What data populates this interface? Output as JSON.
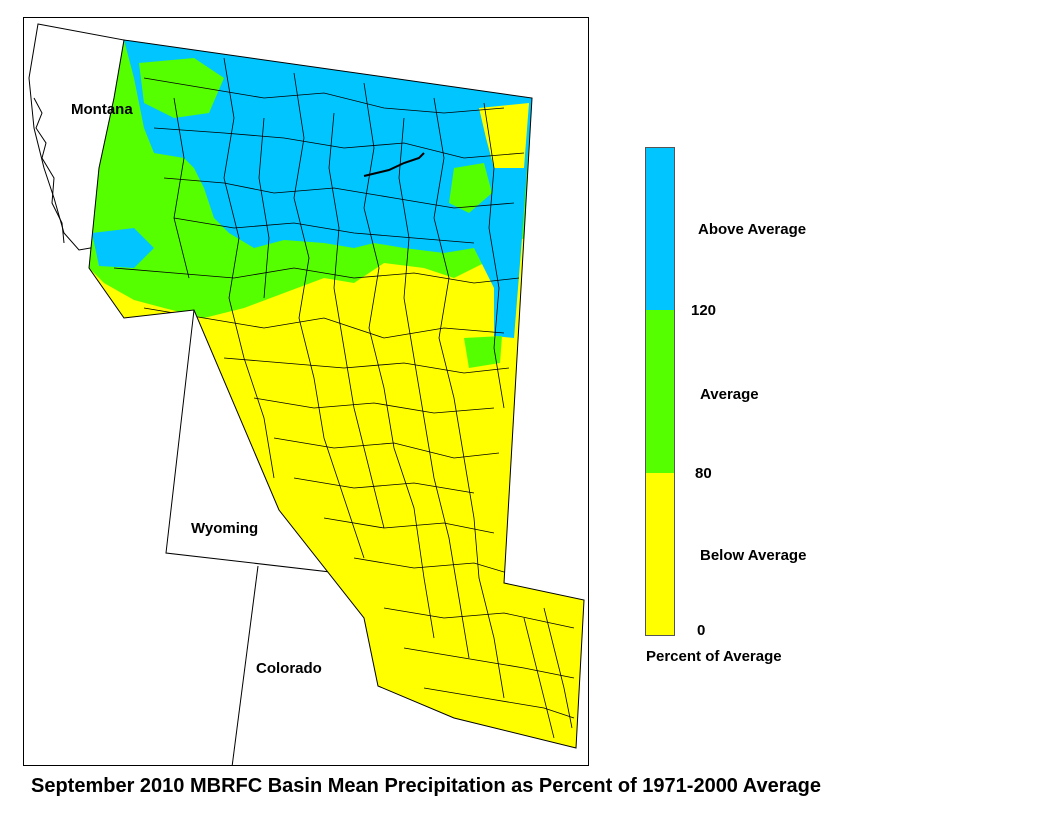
{
  "title": "September 2010 MBRFC Basin Mean Precipitation as Percent of 1971-2000 Average",
  "states": {
    "montana": "Montana",
    "wyoming": "Wyoming",
    "colorado": "Colorado"
  },
  "legend": {
    "caption": "Percent of Average",
    "categories": [
      {
        "label": "Above Average",
        "color": "#00c5ff",
        "min": 120
      },
      {
        "label": "Average",
        "color": "#55ff00",
        "min": 80,
        "max": 120
      },
      {
        "label": "Below Average",
        "color": "#ffff00",
        "min": 0,
        "max": 80
      }
    ],
    "ticks": [
      "120",
      "80",
      "0"
    ]
  }
}
